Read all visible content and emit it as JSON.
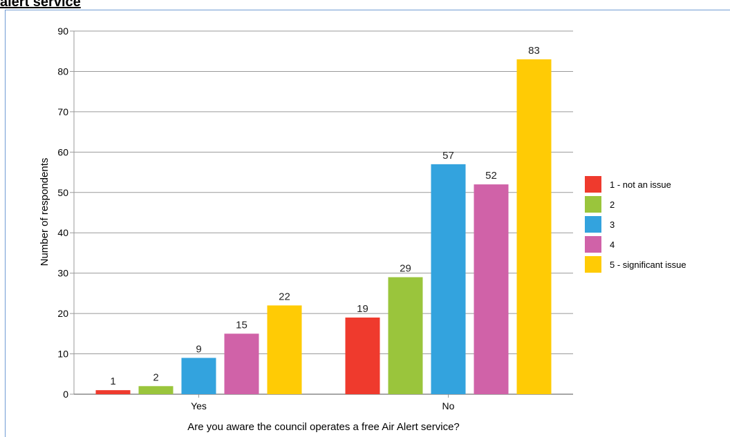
{
  "page": {
    "heading": "alert service"
  },
  "chart_data": {
    "type": "bar",
    "title": "",
    "xlabel": "Are you aware the council operates a free Air Alert service?",
    "ylabel": "Number of respondents",
    "categories": [
      "Yes",
      "No"
    ],
    "ylim": [
      0,
      90
    ],
    "yticks": [
      0,
      10,
      20,
      30,
      40,
      50,
      60,
      70,
      80,
      90
    ],
    "grid": true,
    "legend_position": "right",
    "series": [
      {
        "name": "1 - not an issue",
        "color": "#ef3a2d",
        "values": [
          1,
          19
        ]
      },
      {
        "name": "2",
        "color": "#9ac53c",
        "values": [
          2,
          29
        ]
      },
      {
        "name": "3",
        "color": "#33a3de",
        "values": [
          9,
          57
        ]
      },
      {
        "name": "4",
        "color": "#d062a8",
        "values": [
          15,
          52
        ]
      },
      {
        "name": "5 - significant issue",
        "color": "#ffcb05",
        "values": [
          22,
          83
        ]
      }
    ]
  }
}
